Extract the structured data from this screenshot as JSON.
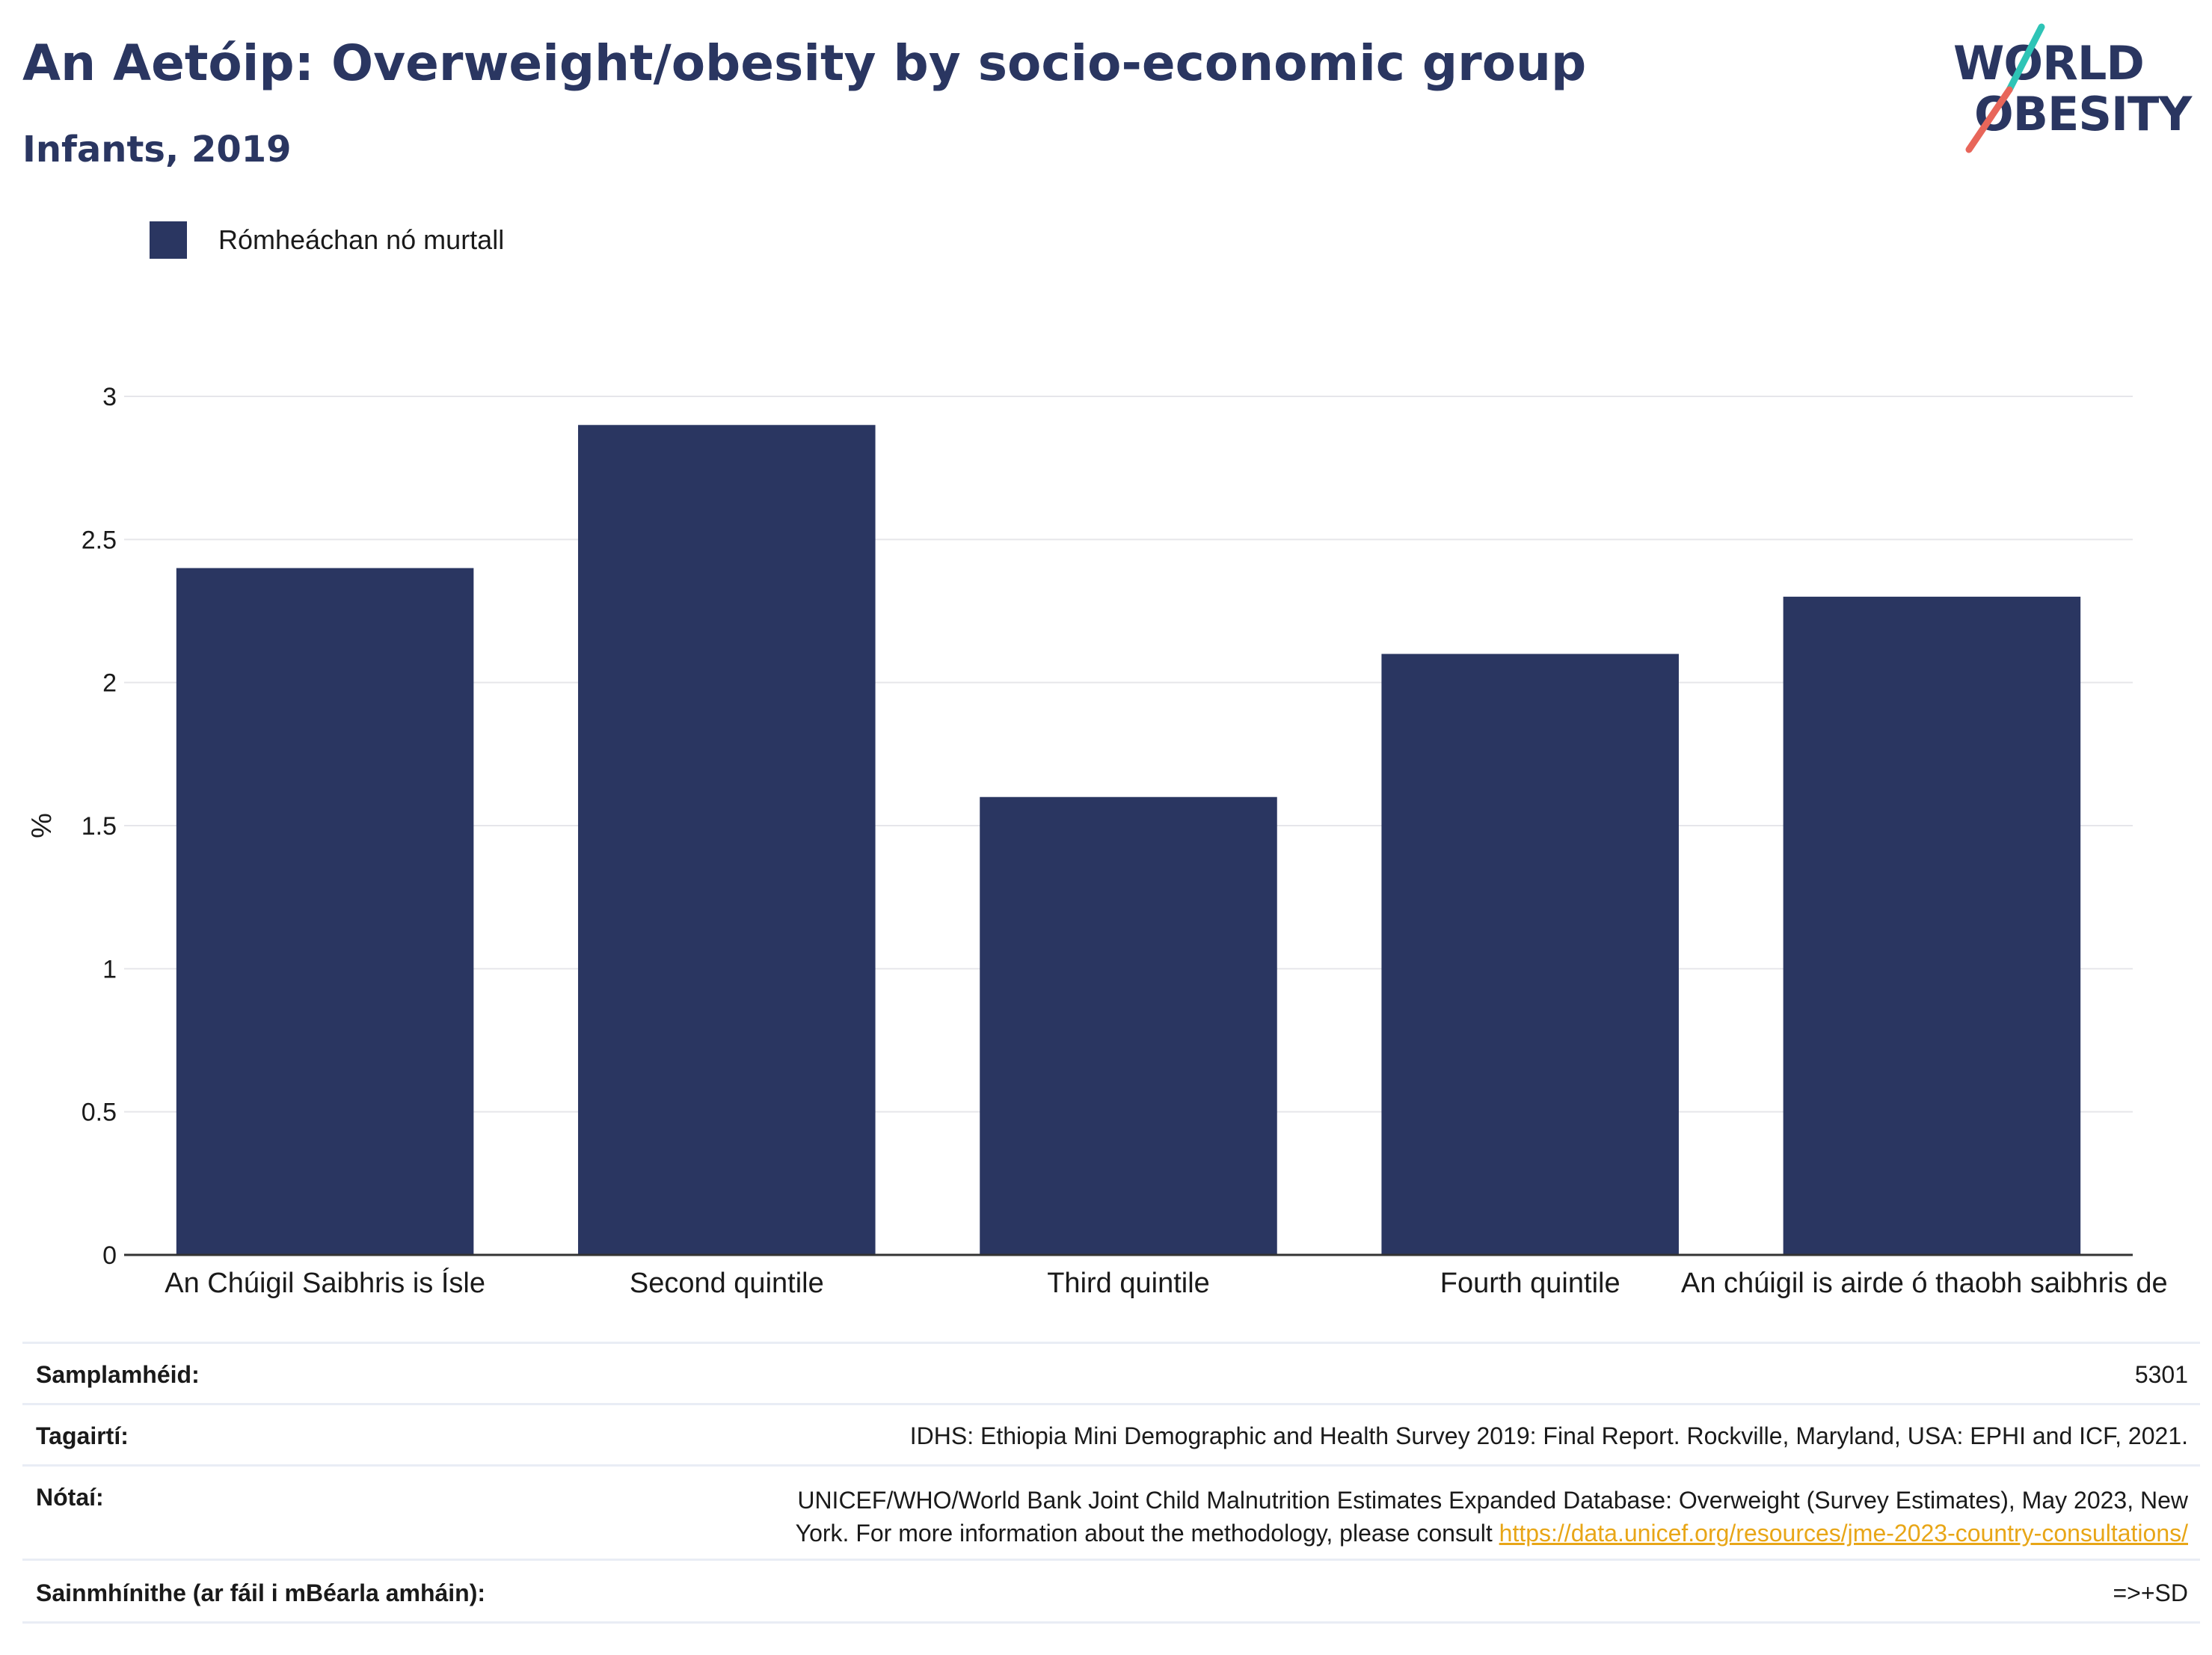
{
  "header": {
    "title": "An Aetóip: Overweight/obesity by socio-economic group",
    "subtitle": "Infants, 2019"
  },
  "logo": {
    "line1": "WORLD",
    "line2": "OBESITY",
    "accent_teal": "#2ec4b6",
    "accent_red": "#e8665a"
  },
  "legend": {
    "label": "Rómheáchan nó murtall",
    "color": "#2a3661"
  },
  "chart_data": {
    "type": "bar",
    "categories": [
      "An Chúigil Saibhris is Ísle",
      "Second quintile",
      "Third quintile",
      "Fourth quintile",
      "An chúigil is airde ó thaobh saibhris de"
    ],
    "series": [
      {
        "name": "Rómheáchan nó murtall",
        "values": [
          2.4,
          2.9,
          1.6,
          2.1,
          2.3
        ]
      }
    ],
    "ylabel": "%",
    "ylim": [
      0,
      3
    ],
    "yticks": [
      "0",
      "0.5",
      "1",
      "1.5",
      "2",
      "2.5",
      "3"
    ],
    "grid": true,
    "bar_color": "#2a3661"
  },
  "footer": {
    "sample_size_label": "Samplamhéid:",
    "sample_size_value": "5301",
    "references_label": "Tagairtí:",
    "references_value": "IDHS: Ethiopia Mini Demographic and Health Survey 2019: Final Report. Rockville, Maryland, USA: EPHI and ICF, 2021.",
    "notes_label": "Nótaí:",
    "notes_line1": "UNICEF/WHO/World Bank Joint Child Malnutrition Estimates Expanded Database: Overweight (Survey Estimates), May 2023, New",
    "notes_line2": "York. For more information about the methodology, please consult",
    "notes_link": "https://data.unicef.org/resources/jme-2023-country-consultations/",
    "definitions_label": "Sainmhínithe (ar fáil i mBéarla amháin):",
    "definitions_value": "=>+SD"
  }
}
